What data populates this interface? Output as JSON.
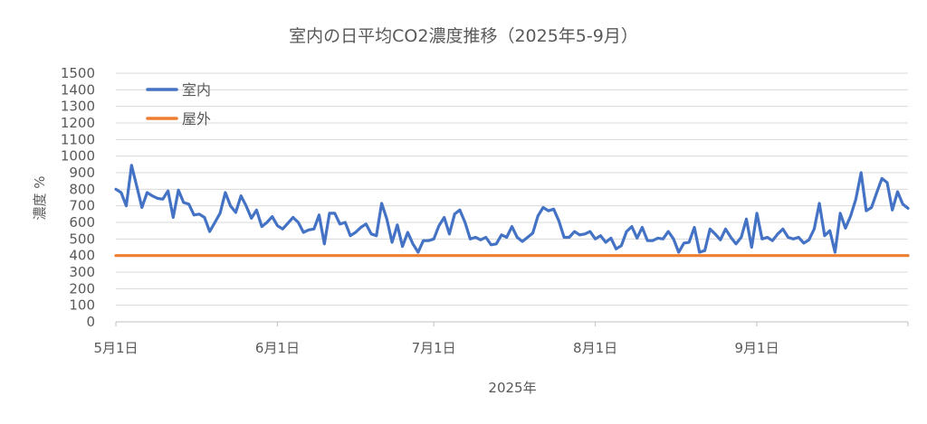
{
  "chart_data": {
    "type": "line",
    "title": "室内の日平均CO2濃度推移（2025年5-9月）",
    "xlabel": "2025年",
    "ylabel": "濃度 %",
    "ylim": [
      0,
      1500
    ],
    "yticks": [
      0,
      100,
      200,
      300,
      400,
      500,
      600,
      700,
      800,
      900,
      1000,
      1100,
      1200,
      1300,
      1400,
      1500
    ],
    "xlim": [
      "2025-05-01",
      "2025-09-30"
    ],
    "xticks": [
      {
        "date": "2025-05-01",
        "label": "5月1日"
      },
      {
        "date": "2025-06-01",
        "label": "6月1日"
      },
      {
        "date": "2025-07-01",
        "label": "7月1日"
      },
      {
        "date": "2025-08-01",
        "label": "8月1日"
      },
      {
        "date": "2025-09-01",
        "label": "9月1日"
      }
    ],
    "grid": "horizontal",
    "legend_position": "top-left",
    "series": [
      {
        "name": "室内",
        "color": "#4472c4",
        "points": [
          [
            "2025-05-01",
            800
          ],
          [
            "2025-05-02",
            780
          ],
          [
            "2025-05-03",
            700
          ],
          [
            "2025-05-04",
            945
          ],
          [
            "2025-05-05",
            820
          ],
          [
            "2025-05-06",
            690
          ],
          [
            "2025-05-07",
            780
          ],
          [
            "2025-05-08",
            760
          ],
          [
            "2025-05-09",
            745
          ],
          [
            "2025-05-10",
            740
          ],
          [
            "2025-05-11",
            790
          ],
          [
            "2025-05-12",
            630
          ],
          [
            "2025-05-13",
            795
          ],
          [
            "2025-05-14",
            720
          ],
          [
            "2025-05-15",
            710
          ],
          [
            "2025-05-16",
            645
          ],
          [
            "2025-05-17",
            650
          ],
          [
            "2025-05-18",
            630
          ],
          [
            "2025-05-19",
            545
          ],
          [
            "2025-05-20",
            600
          ],
          [
            "2025-05-21",
            655
          ],
          [
            "2025-05-22",
            780
          ],
          [
            "2025-05-23",
            700
          ],
          [
            "2025-05-24",
            660
          ],
          [
            "2025-05-25",
            760
          ],
          [
            "2025-05-26",
            700
          ],
          [
            "2025-05-27",
            625
          ],
          [
            "2025-05-28",
            675
          ],
          [
            "2025-05-29",
            575
          ],
          [
            "2025-05-30",
            600
          ],
          [
            "2025-05-31",
            635
          ],
          [
            "2025-06-01",
            580
          ],
          [
            "2025-06-02",
            560
          ],
          [
            "2025-06-03",
            595
          ],
          [
            "2025-06-04",
            630
          ],
          [
            "2025-06-05",
            600
          ],
          [
            "2025-06-06",
            540
          ],
          [
            "2025-06-07",
            555
          ],
          [
            "2025-06-08",
            560
          ],
          [
            "2025-06-09",
            645
          ],
          [
            "2025-06-10",
            470
          ],
          [
            "2025-06-11",
            655
          ],
          [
            "2025-06-12",
            655
          ],
          [
            "2025-06-13",
            590
          ],
          [
            "2025-06-14",
            600
          ],
          [
            "2025-06-15",
            520
          ],
          [
            "2025-06-16",
            540
          ],
          [
            "2025-06-17",
            570
          ],
          [
            "2025-06-18",
            590
          ],
          [
            "2025-06-19",
            530
          ],
          [
            "2025-06-20",
            520
          ],
          [
            "2025-06-21",
            715
          ],
          [
            "2025-06-22",
            620
          ],
          [
            "2025-06-23",
            480
          ],
          [
            "2025-06-24",
            585
          ],
          [
            "2025-06-25",
            455
          ],
          [
            "2025-06-26",
            540
          ],
          [
            "2025-06-27",
            470
          ],
          [
            "2025-06-28",
            420
          ],
          [
            "2025-06-29",
            490
          ],
          [
            "2025-06-30",
            490
          ],
          [
            "2025-07-01",
            500
          ],
          [
            "2025-07-02",
            580
          ],
          [
            "2025-07-03",
            630
          ],
          [
            "2025-07-04",
            530
          ],
          [
            "2025-07-05",
            650
          ],
          [
            "2025-07-06",
            675
          ],
          [
            "2025-07-07",
            600
          ],
          [
            "2025-07-08",
            500
          ],
          [
            "2025-07-09",
            510
          ],
          [
            "2025-07-10",
            495
          ],
          [
            "2025-07-11",
            510
          ],
          [
            "2025-07-12",
            465
          ],
          [
            "2025-07-13",
            470
          ],
          [
            "2025-07-14",
            525
          ],
          [
            "2025-07-15",
            510
          ],
          [
            "2025-07-16",
            575
          ],
          [
            "2025-07-17",
            510
          ],
          [
            "2025-07-18",
            485
          ],
          [
            "2025-07-19",
            510
          ],
          [
            "2025-07-20",
            535
          ],
          [
            "2025-07-21",
            640
          ],
          [
            "2025-07-22",
            690
          ],
          [
            "2025-07-23",
            670
          ],
          [
            "2025-07-24",
            680
          ],
          [
            "2025-07-25",
            610
          ],
          [
            "2025-07-26",
            510
          ],
          [
            "2025-07-27",
            510
          ],
          [
            "2025-07-28",
            545
          ],
          [
            "2025-07-29",
            525
          ],
          [
            "2025-07-30",
            530
          ],
          [
            "2025-07-31",
            545
          ],
          [
            "2025-08-01",
            500
          ],
          [
            "2025-08-02",
            520
          ],
          [
            "2025-08-03",
            480
          ],
          [
            "2025-08-04",
            505
          ],
          [
            "2025-08-05",
            440
          ],
          [
            "2025-08-06",
            460
          ],
          [
            "2025-08-07",
            545
          ],
          [
            "2025-08-08",
            575
          ],
          [
            "2025-08-09",
            505
          ],
          [
            "2025-08-10",
            570
          ],
          [
            "2025-08-11",
            490
          ],
          [
            "2025-08-12",
            490
          ],
          [
            "2025-08-13",
            505
          ],
          [
            "2025-08-14",
            500
          ],
          [
            "2025-08-15",
            545
          ],
          [
            "2025-08-16",
            500
          ],
          [
            "2025-08-17",
            420
          ],
          [
            "2025-08-18",
            475
          ],
          [
            "2025-08-19",
            480
          ],
          [
            "2025-08-20",
            570
          ],
          [
            "2025-08-21",
            420
          ],
          [
            "2025-08-22",
            430
          ],
          [
            "2025-08-23",
            560
          ],
          [
            "2025-08-24",
            530
          ],
          [
            "2025-08-25",
            495
          ],
          [
            "2025-08-26",
            560
          ],
          [
            "2025-08-27",
            510
          ],
          [
            "2025-08-28",
            470
          ],
          [
            "2025-08-29",
            510
          ],
          [
            "2025-08-30",
            620
          ],
          [
            "2025-08-31",
            450
          ],
          [
            "2025-09-01",
            655
          ],
          [
            "2025-09-02",
            500
          ],
          [
            "2025-09-03",
            510
          ],
          [
            "2025-09-04",
            490
          ],
          [
            "2025-09-05",
            530
          ],
          [
            "2025-09-06",
            560
          ],
          [
            "2025-09-07",
            510
          ],
          [
            "2025-09-08",
            500
          ],
          [
            "2025-09-09",
            510
          ],
          [
            "2025-09-10",
            475
          ],
          [
            "2025-09-11",
            495
          ],
          [
            "2025-09-12",
            560
          ],
          [
            "2025-09-13",
            715
          ],
          [
            "2025-09-14",
            520
          ],
          [
            "2025-09-15",
            550
          ],
          [
            "2025-09-16",
            420
          ],
          [
            "2025-09-17",
            655
          ],
          [
            "2025-09-18",
            565
          ],
          [
            "2025-09-19",
            640
          ],
          [
            "2025-09-20",
            740
          ],
          [
            "2025-09-21",
            900
          ],
          [
            "2025-09-22",
            670
          ],
          [
            "2025-09-23",
            690
          ],
          [
            "2025-09-24",
            780
          ],
          [
            "2025-09-25",
            865
          ],
          [
            "2025-09-26",
            840
          ],
          [
            "2025-09-27",
            675
          ],
          [
            "2025-09-28",
            785
          ],
          [
            "2025-09-29",
            710
          ],
          [
            "2025-09-30",
            685
          ]
        ]
      },
      {
        "name": "屋外",
        "color": "#ed7d31",
        "points": [
          [
            "2025-05-01",
            400
          ],
          [
            "2025-09-30",
            400
          ]
        ]
      }
    ]
  }
}
